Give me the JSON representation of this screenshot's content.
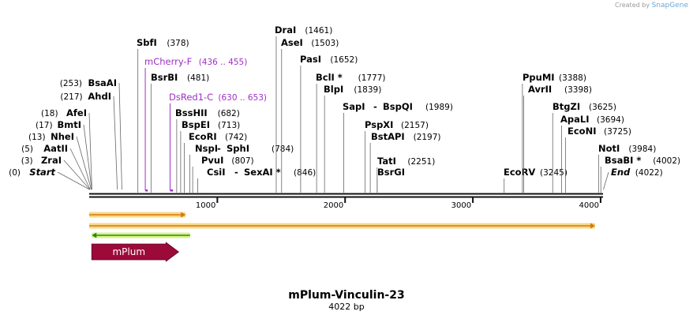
{
  "brand": {
    "created_by": "Created by",
    "name": "SnapGene"
  },
  "map": {
    "title": "mPlum-Vinculin-23",
    "length_label": "4022 bp",
    "length": 4022,
    "axis_ticks": [
      "1000",
      "2000",
      "3000",
      "4000"
    ],
    "sites": [
      {
        "name": "Start",
        "pos": "(0)",
        "bp": 0,
        "italic": true
      },
      {
        "name": "ZraI",
        "pos": "(3)",
        "bp": 3
      },
      {
        "name": "AatII",
        "pos": "(5)",
        "bp": 5
      },
      {
        "name": "NheI",
        "pos": "(13)",
        "bp": 13
      },
      {
        "name": "BmtI",
        "pos": "(17)",
        "bp": 17
      },
      {
        "name": "AfeI",
        "pos": "(18)",
        "bp": 18
      },
      {
        "name": "AhdI",
        "pos": "(217)",
        "bp": 217
      },
      {
        "name": "BsaAI",
        "pos": "(253)",
        "bp": 253
      },
      {
        "name": "SbfI",
        "pos": "(378)",
        "bp": 378
      },
      {
        "name": "BsrBI",
        "pos": "(481)",
        "bp": 481
      },
      {
        "name": "BssHII",
        "pos": "(682)",
        "bp": 682
      },
      {
        "name": "BspEI",
        "pos": "(713)",
        "bp": 713
      },
      {
        "name": "EcoRI",
        "pos": "(742)",
        "bp": 742
      },
      {
        "name": "NspI",
        "name2": "SphI",
        "pos": "(784)",
        "bp": 784
      },
      {
        "name": "PvuI",
        "pos": "(807)",
        "bp": 807
      },
      {
        "name": "CsiI",
        "name2": "SexAI *",
        "pos": "(846)",
        "bp": 846
      },
      {
        "name": "DraI",
        "pos": "(1461)",
        "bp": 1461
      },
      {
        "name": "AseI",
        "pos": "(1503)",
        "bp": 1503
      },
      {
        "name": "PasI",
        "pos": "(1652)",
        "bp": 1652
      },
      {
        "name": "BclI *",
        "pos": "(1777)",
        "bp": 1777
      },
      {
        "name": "BlpI",
        "pos": "(1839)",
        "bp": 1839
      },
      {
        "name": "SapI",
        "name2": "BspQI",
        "pos": "(1989)",
        "bp": 1989
      },
      {
        "name": "PspXI",
        "pos": "(2157)",
        "bp": 2157
      },
      {
        "name": "BstAPI",
        "pos": "(2197)",
        "bp": 2197
      },
      {
        "name": "TatI",
        "pos": "(2251)",
        "bp": 2251
      },
      {
        "name": "BsrGI",
        "pos": "",
        "bp": 2251
      },
      {
        "name": "EcoRV",
        "pos": "(3245)",
        "bp": 3245
      },
      {
        "name": "PpuMI",
        "pos": "(3388)",
        "bp": 3388
      },
      {
        "name": "AvrII",
        "pos": "(3398)",
        "bp": 3398
      },
      {
        "name": "BtgZI",
        "pos": "(3625)",
        "bp": 3625
      },
      {
        "name": "ApaLI",
        "pos": "(3694)",
        "bp": 3694
      },
      {
        "name": "EcoNI",
        "pos": "(3725)",
        "bp": 3725
      },
      {
        "name": "NotI",
        "pos": "(3984)",
        "bp": 3984
      },
      {
        "name": "BsaBI *",
        "pos": "(4002)",
        "bp": 4002
      },
      {
        "name": "End",
        "pos": "(4022)",
        "bp": 4022,
        "italic": true
      }
    ],
    "primers": [
      {
        "name": "mCherry-F",
        "range": "(436 .. 455)",
        "start": 436,
        "end": 455,
        "color": "#a02ec8"
      },
      {
        "name": "DsRed1-C",
        "range": "(630 .. 653)",
        "start": 630,
        "end": 653,
        "color": "#a02ec8"
      }
    ],
    "features": [
      {
        "name": "mPlum",
        "start": 20,
        "end": 700,
        "color": "#9c0a3a",
        "label_color": "#ffffff"
      }
    ],
    "orfs": [
      {
        "start": 0,
        "end": 755,
        "direction": "forward",
        "color": "#d9780a"
      },
      {
        "start": 0,
        "end": 3960,
        "direction": "forward",
        "color": "#d9780a"
      },
      {
        "start": 20,
        "end": 790,
        "direction": "reverse",
        "color": "#2c8a12"
      }
    ],
    "colors": {
      "backbone": "#111111",
      "text": "#000000",
      "line": "#666666"
    }
  }
}
